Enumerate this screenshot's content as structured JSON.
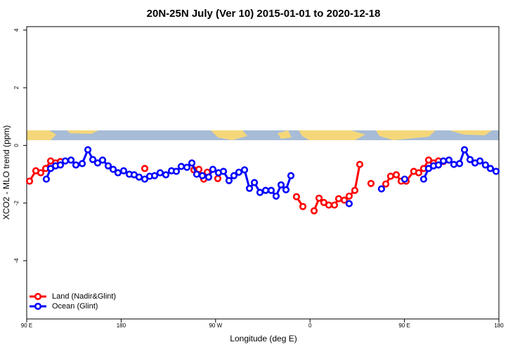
{
  "chart_data": {
    "type": "line",
    "title": "20N-25N July (Ver 10)   2015-01-01 to 2020-12-18",
    "x_label": "Longitude (deg E)",
    "y_label": "XCO2 - MLO trend (ppm)",
    "xlim": [
      90,
      540
    ],
    "xticks": [
      {
        "value": 90,
        "label": "90 E"
      },
      {
        "value": 180,
        "label": "180"
      },
      {
        "value": 270,
        "label": "90 W"
      },
      {
        "value": 360,
        "label": "0"
      },
      {
        "value": 450,
        "label": "90 E"
      },
      {
        "value": 540,
        "label": "180"
      }
    ],
    "ylim": [
      -6.02,
      4.12
    ],
    "yticks": [
      4,
      2,
      0,
      -2,
      -4
    ],
    "legend": "bottom-left",
    "series": [
      {
        "name": "Land (Nadir&Glint)",
        "color": "#ff0000",
        "x": [
          92.7,
          98.7,
          103.4,
          108.1,
          112.8,
          117.5,
          122.1,
          null,
          202.5,
          null,
          249.4,
          254.1,
          258.7,
          262.1,
          null,
          272.1,
          null,
          347.1,
          353.2,
          null,
          363.9,
          368.6,
          373.2,
          377.9,
          383.3,
          387.3,
          392.7,
          397.3,
          402.7,
          407.4,
          null,
          418.1,
          null,
          432.2,
          436.8,
          442.2,
          446.9,
          451.6,
          458.9,
          463.6,
          468.3,
          473.0,
          477.7,
          482.4,
          487.1
        ],
        "values": [
          -1.24,
          -0.88,
          -0.95,
          -0.8,
          -0.54,
          -0.61,
          -0.56,
          null,
          -0.8,
          null,
          -0.85,
          -0.83,
          -1.17,
          -0.93,
          null,
          -1.15,
          null,
          -1.78,
          -2.12,
          null,
          -2.27,
          -1.83,
          -1.98,
          -2.07,
          -2.07,
          -1.85,
          -1.9,
          -1.76,
          -1.56,
          -0.66,
          null,
          -1.32,
          null,
          -1.34,
          -1.07,
          -1.02,
          -1.24,
          -1.24,
          -0.9,
          -0.95,
          -0.8,
          -0.51,
          -0.61,
          -0.54,
          -0.56
        ]
      },
      {
        "name": "Ocean (Glint)",
        "color": "#0000ff",
        "x": [
          108.7,
          112.8,
          117.5,
          122.1,
          126.8,
          132.2,
          136.9,
          142.9,
          148.3,
          153.0,
          157.6,
          162.3,
          167.7,
          172.4,
          177.0,
          182.4,
          187.8,
          192.4,
          197.1,
          202.5,
          207.2,
          211.9,
          217.2,
          222.6,
          228.0,
          232.6,
          237.3,
          242.7,
          247.4,
          252.0,
          257.4,
          263.4,
          267.4,
          272.8,
          277.5,
          282.8,
          287.5,
          292.2,
          297.6,
          302.3,
          307.0,
          312.3,
          317.7,
          323.0,
          327.7,
          332.4,
          337.1,
          341.8,
          null,
          397.3,
          null,
          428.1,
          null,
          450.2,
          null,
          468.3,
          473.0,
          477.7,
          482.4,
          487.1,
          492.4,
          497.1,
          502.5,
          507.2,
          512.5,
          517.2,
          521.9,
          527.2,
          531.9,
          537.3
        ],
        "values": [
          -1.17,
          -0.8,
          -0.71,
          -0.68,
          -0.54,
          -0.51,
          -0.68,
          -0.63,
          -0.15,
          -0.49,
          -0.61,
          -0.51,
          -0.71,
          -0.83,
          -0.95,
          -0.88,
          -1.0,
          -1.02,
          -1.1,
          -1.17,
          -1.07,
          -1.05,
          -0.95,
          -1.02,
          -0.88,
          -0.9,
          -0.73,
          -0.76,
          -0.61,
          -1.0,
          -1.05,
          -1.1,
          -0.83,
          -0.95,
          -0.9,
          -1.22,
          -1.05,
          -0.93,
          -0.85,
          -1.49,
          -1.29,
          -1.63,
          -1.56,
          -1.56,
          -1.76,
          -1.37,
          -1.54,
          -1.05,
          null,
          -2.02,
          null,
          -1.51,
          null,
          -1.17,
          null,
          -1.17,
          -0.8,
          -0.71,
          -0.68,
          -0.54,
          -0.51,
          -0.66,
          -0.63,
          -0.15,
          -0.49,
          -0.61,
          -0.54,
          -0.68,
          -0.8,
          -0.9
        ]
      }
    ]
  }
}
